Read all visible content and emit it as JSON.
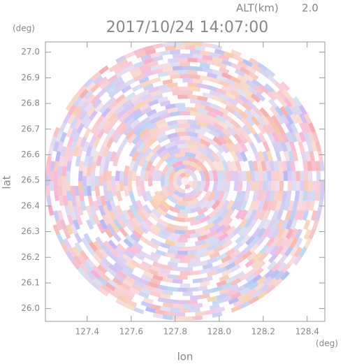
{
  "chart_data": {
    "type": "radar-field",
    "title": "2017/10/24 14:07:00",
    "altitude_label": "ALT(km)",
    "altitude": "2.0",
    "y_unit": "(deg)",
    "x_unit": "(deg)",
    "xlabel": "lon",
    "ylabel": "lat",
    "xlim": [
      127.21,
      128.48
    ],
    "ylim": [
      25.95,
      27.04
    ],
    "xticks": [
      127.4,
      127.6,
      127.8,
      {
        "value": 128.0,
        "label": "128.0"
      },
      128.2,
      128.4
    ],
    "yticks": [
      {
        "value": 26.0,
        "label": "26.0"
      },
      26.1,
      26.2,
      26.3,
      26.4,
      26.5,
      26.6,
      26.7,
      26.8,
      26.9,
      {
        "value": 27.0,
        "label": "27.0"
      }
    ]
  }
}
